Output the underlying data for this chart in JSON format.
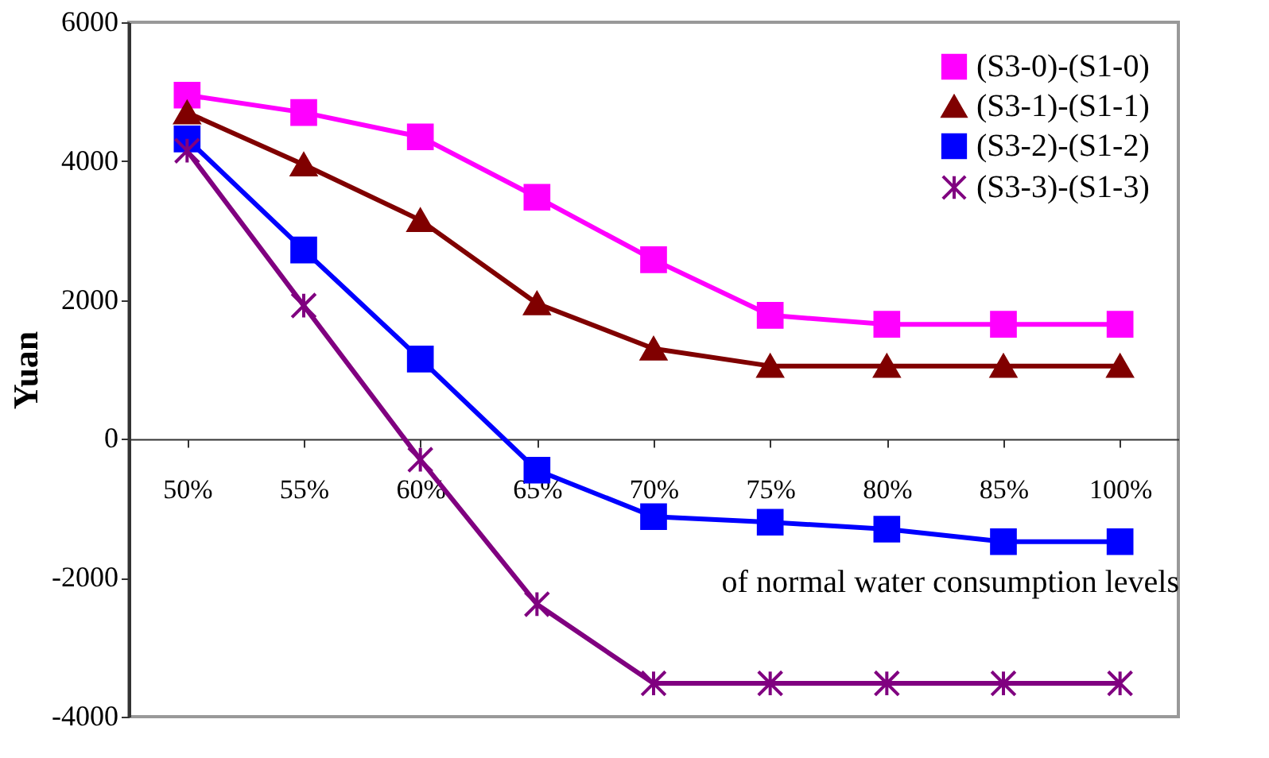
{
  "chart_data": {
    "type": "line",
    "ylabel": "Yuan",
    "xlabel": "of normal water consumption levels",
    "categories": [
      "50%",
      "55%",
      "60%",
      "65%",
      "70%",
      "75%",
      "80%",
      "85%",
      "100%"
    ],
    "ylim": [
      -4000,
      6000
    ],
    "yticks": [
      -4000,
      -2000,
      0,
      2000,
      4000,
      6000
    ],
    "grid": false,
    "legend": "top right",
    "line_style": "solid",
    "series": [
      {
        "name": "(S3-0)-(S1-0)",
        "color": "#ff00ff",
        "marker": "square",
        "values": [
          4950,
          4700,
          4350,
          3480,
          2580,
          1780,
          1650,
          1650,
          1650
        ]
      },
      {
        "name": "(S3-1)-(S1-1)",
        "color": "#800000",
        "marker": "triangle",
        "values": [
          4700,
          3950,
          3150,
          1950,
          1300,
          1050,
          1050,
          1050,
          1050
        ]
      },
      {
        "name": "(S3-2)-(S1-2)",
        "color": "#0000ff",
        "marker": "square",
        "values": [
          4320,
          2720,
          1150,
          -450,
          -1120,
          -1200,
          -1300,
          -1480,
          -1480
        ]
      },
      {
        "name": "(S3-3)-(S1-3)",
        "color": "#800080",
        "marker": "cross",
        "values": [
          4150,
          1920,
          -300,
          -2380,
          -3520,
          -3520,
          -3520,
          -3520,
          -3520
        ]
      }
    ]
  }
}
